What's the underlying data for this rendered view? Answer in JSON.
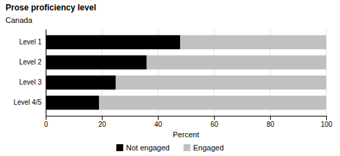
{
  "chart_data": {
    "type": "bar",
    "orientation": "horizontal",
    "stacked": true,
    "title": "Prose proficiency level",
    "subtitle": "Canada",
    "xlabel": "Percent",
    "categories": [
      "Level 1",
      "Level 2",
      "Level 3",
      "Level 4/5"
    ],
    "series": [
      {
        "name": "Not engaged",
        "color": "#000000",
        "values": [
          48,
          36,
          25,
          19
        ]
      },
      {
        "name": "Engaged",
        "color": "#c0c0c0",
        "values": [
          52,
          64,
          75,
          81
        ]
      }
    ],
    "xlim": [
      0,
      100
    ],
    "xticks": [
      0,
      20,
      40,
      60,
      80,
      100
    ],
    "grid": true,
    "legend": "bottom"
  }
}
